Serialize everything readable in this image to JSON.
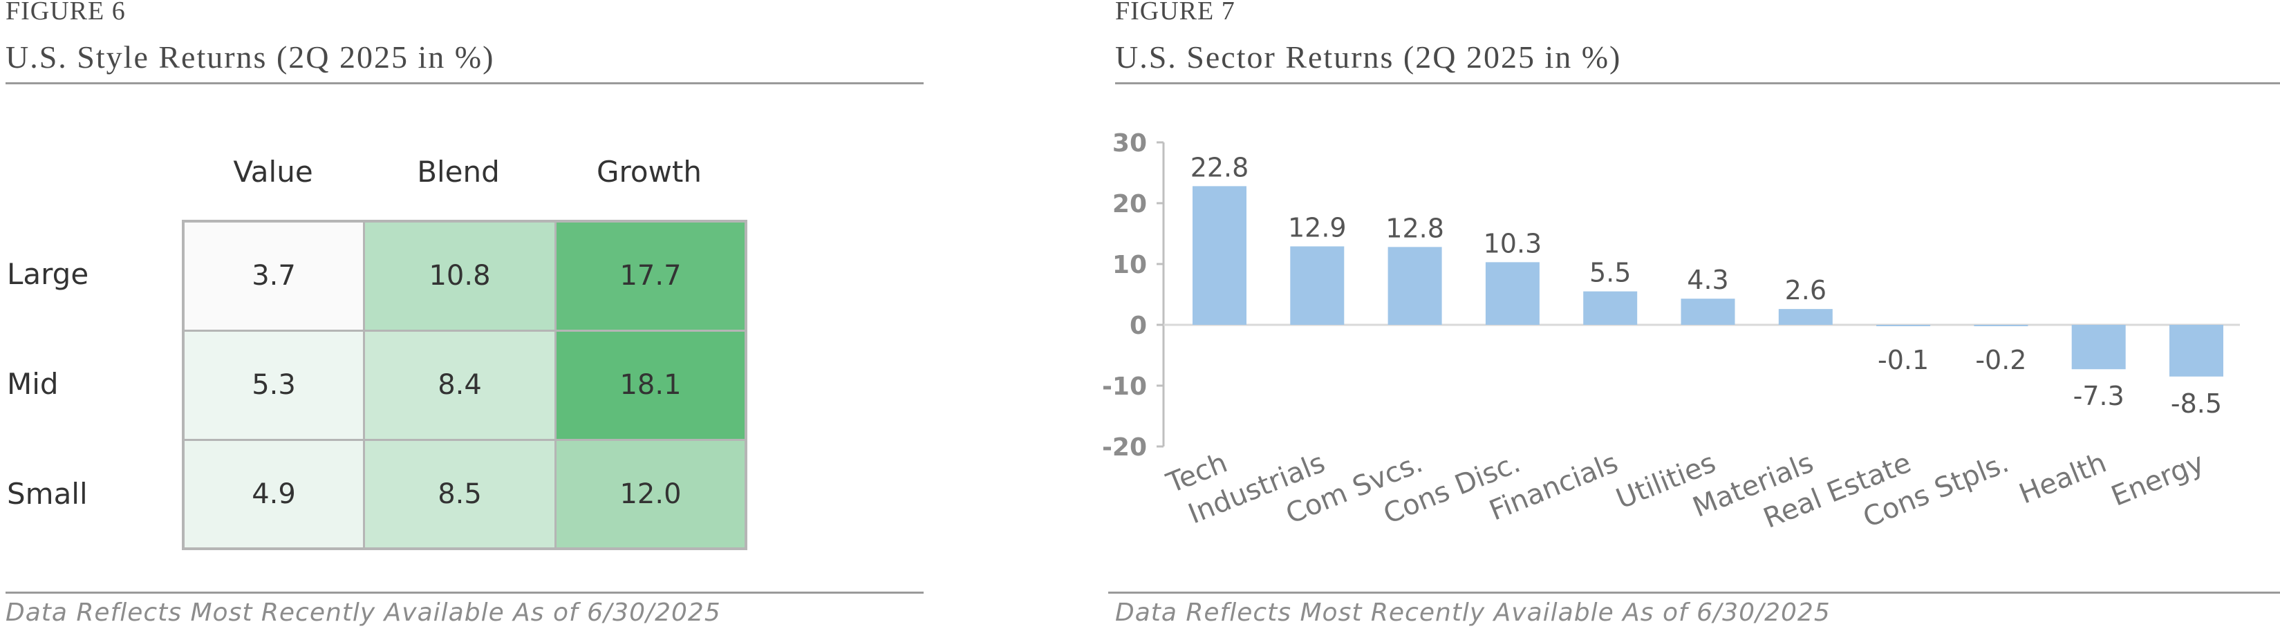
{
  "left": {
    "figure_label": "FIGURE 6",
    "title": "U.S. Style Returns (2Q 2025 in %)",
    "footer": "Data Reflects Most Recently Available As of 6/30/2025"
  },
  "right": {
    "figure_label": "FIGURE 7",
    "title": "U.S. Sector Returns (2Q 2025 in %)",
    "footer": "Data Reflects Most Recently Available As of 6/30/2025"
  },
  "chart_data": [
    {
      "type": "heatmap",
      "columns": [
        "Value",
        "Blend",
        "Growth"
      ],
      "rows": [
        "Large",
        "Mid",
        "Small"
      ],
      "values": [
        [
          "3.7",
          "10.8",
          "17.7"
        ],
        [
          "5.3",
          "8.4",
          "18.1"
        ],
        [
          "4.9",
          "8.5",
          "12.0"
        ]
      ],
      "cell_colors": [
        [
          "#fafafa",
          "#b7e0c4",
          "#66bf7f"
        ],
        [
          "#edf6f1",
          "#cde9d6",
          "#60bd7a"
        ],
        [
          "#ebf5ef",
          "#cbe8d4",
          "#a8d9b6"
        ]
      ]
    },
    {
      "type": "bar",
      "categories": [
        "Tech",
        "Industrials",
        "Com Svcs.",
        "Cons Disc.",
        "Financials",
        "Utilities",
        "Materials",
        "Real Estate",
        "Cons Stpls.",
        "Health",
        "Energy"
      ],
      "values": [
        22.8,
        12.9,
        12.8,
        10.3,
        5.5,
        4.3,
        2.6,
        -0.1,
        -0.2,
        -7.3,
        -8.5
      ],
      "data_labels": [
        "22.8",
        "12.9",
        "12.8",
        "10.3",
        "5.5",
        "4.3",
        "2.6",
        "-0.1",
        "-0.2",
        "-7.3",
        "-8.5"
      ],
      "ylim": [
        -20,
        30
      ],
      "yticks": [
        30,
        20,
        10,
        0,
        -10,
        -20
      ],
      "bar_color": "#9fc5e8",
      "grid": false
    }
  ]
}
